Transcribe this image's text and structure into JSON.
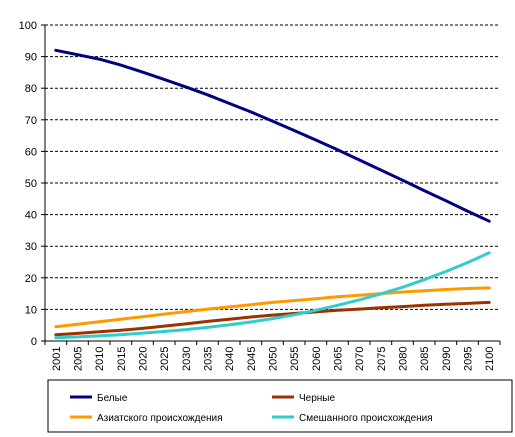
{
  "chart_data": {
    "type": "line",
    "title": "",
    "xlabel": "",
    "ylabel": "",
    "ylim": [
      0,
      100
    ],
    "y_ticks": [
      0,
      10,
      20,
      30,
      40,
      50,
      60,
      70,
      80,
      90,
      100
    ],
    "grid": "horizontal dashed",
    "legend_position": "bottom",
    "x": [
      "2001",
      "2005",
      "2010",
      "2015",
      "2020",
      "2025",
      "2030",
      "2035",
      "2040",
      "2045",
      "2050",
      "2055",
      "2060",
      "2065",
      "2070",
      "2075",
      "2080",
      "2085",
      "2090",
      "2095",
      "2100"
    ],
    "series": [
      {
        "name": "Белые",
        "color": "#000080",
        "values": [
          92,
          90.6,
          89.2,
          87.3,
          85.1,
          82.8,
          80.4,
          77.9,
          75.2,
          72.5,
          69.6,
          66.6,
          63.6,
          60.5,
          57.3,
          54.1,
          50.9,
          47.6,
          44.4,
          41.1,
          37.9
        ]
      },
      {
        "name": "Черные",
        "color": "#993300",
        "values": [
          2,
          2.4,
          2.9,
          3.4,
          4.0,
          4.7,
          5.4,
          6.2,
          6.9,
          7.6,
          8.2,
          8.7,
          9.2,
          9.7,
          10.1,
          10.5,
          10.9,
          11.3,
          11.6,
          11.9,
          12.2
        ]
      },
      {
        "name": "Азиатского происхождения",
        "color": "#FF9900",
        "values": [
          4.5,
          5.3,
          6.1,
          6.9,
          7.7,
          8.5,
          9.3,
          10.1,
          10.8,
          11.5,
          12.2,
          12.8,
          13.4,
          14.0,
          14.5,
          15.0,
          15.5,
          15.9,
          16.3,
          16.6,
          16.8
        ]
      },
      {
        "name": "Смешанного происхождения",
        "color": "#33CCCC",
        "values": [
          1,
          1.3,
          1.6,
          2.0,
          2.5,
          3.0,
          3.6,
          4.3,
          5.1,
          6.0,
          7.1,
          8.3,
          9.7,
          11.3,
          13.0,
          14.9,
          17.0,
          19.4,
          22.0,
          24.8,
          27.9
        ]
      }
    ]
  }
}
